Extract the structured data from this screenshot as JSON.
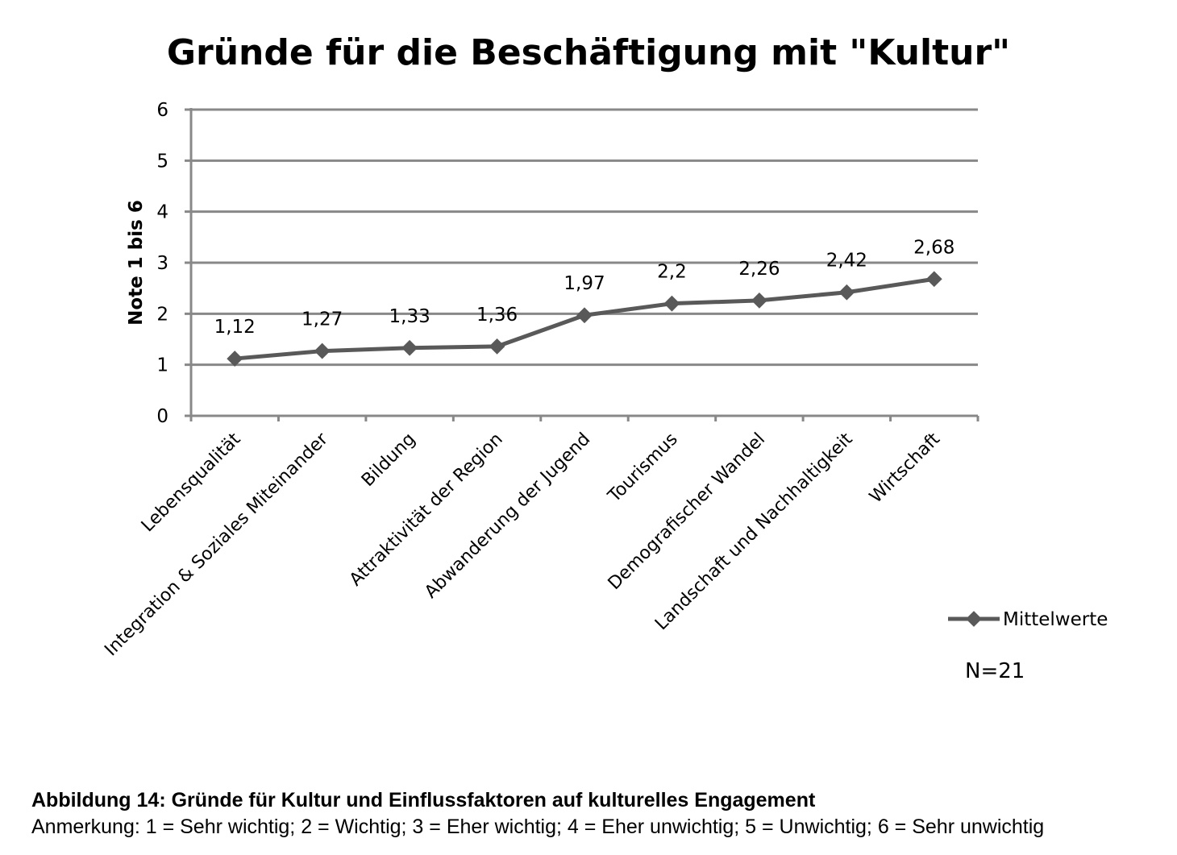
{
  "chart_data": {
    "type": "line",
    "title": "Gründe für die Beschäftigung mit \"Kultur\"",
    "xlabel": "",
    "ylabel": "Note 1 bis 6",
    "ylim": [
      0,
      6
    ],
    "yticks": [
      "0",
      "1",
      "2",
      "3",
      "4",
      "5",
      "6"
    ],
    "grid": true,
    "legend_position": "right",
    "categories": [
      "Lebensqualität",
      "Integration & Soziales Miteinander",
      "Bildung",
      "Attraktivität der Region",
      "Abwanderung der Jugend",
      "Tourismus",
      "Demografischer Wandel",
      "Landschaft und Nachhaltigkeit",
      "Wirtschaft"
    ],
    "series": [
      {
        "name": "Mittelwerte",
        "values": [
          1.12,
          1.27,
          1.33,
          1.36,
          1.97,
          2.2,
          2.26,
          2.42,
          2.68
        ],
        "labels": [
          "1,12",
          "1,27",
          "1,33",
          "1,36",
          "1,97",
          "2,2",
          "2,26",
          "2,42",
          "2,68"
        ],
        "color": "#595959"
      }
    ],
    "annotation": "N=21"
  },
  "caption": {
    "figure": "Abbildung 14: Gründe für Kultur und Einflussfaktoren auf kulturelles Engagement",
    "note": "Anmerkung: 1 = Sehr wichtig; 2 = Wichtig; 3 = Eher wichtig; 4 = Eher unwichtig; 5 = Unwichtig; 6 = Sehr unwichtig"
  },
  "colors": {
    "grid": "#888888",
    "line": "#595959"
  }
}
